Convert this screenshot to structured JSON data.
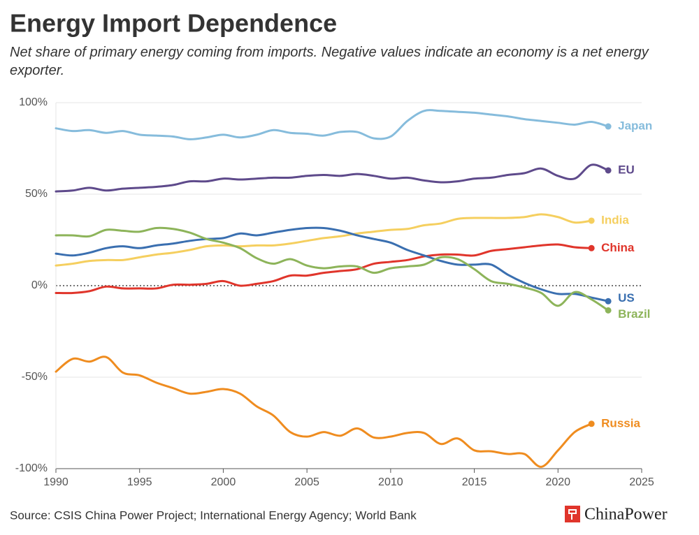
{
  "chart_data": {
    "type": "line",
    "title": "Energy Import Dependence",
    "subtitle": "Net share of primary energy coming from imports. Negative values indicate an economy is a net energy exporter.",
    "source": "Source: CSIS China Power Project; International Energy Agency; World Bank",
    "logo": "ChinaPower",
    "x": [
      1990,
      1991,
      1992,
      1993,
      1994,
      1995,
      1996,
      1997,
      1998,
      1999,
      2000,
      2001,
      2002,
      2003,
      2004,
      2005,
      2006,
      2007,
      2008,
      2009,
      2010,
      2011,
      2012,
      2013,
      2014,
      2015,
      2016,
      2017,
      2018,
      2019,
      2020,
      2021,
      2022,
      2023
    ],
    "xlim": [
      1990,
      2025
    ],
    "xticks": [
      1990,
      1995,
      2000,
      2005,
      2010,
      2015,
      2020,
      2025
    ],
    "ylim": [
      -100,
      100
    ],
    "yticks": [
      {
        "value": 100,
        "label": "100%"
      },
      {
        "value": 50,
        "label": "50%"
      },
      {
        "value": 0,
        "label": "0%"
      },
      {
        "value": -50,
        "label": "-50%"
      },
      {
        "value": -100,
        "label": "-100%"
      }
    ],
    "grid": true,
    "series": [
      {
        "name": "Japan",
        "color": "#86bcdc",
        "values": [
          86,
          84.5,
          85,
          83.5,
          84.5,
          82.5,
          82,
          81.5,
          80,
          81,
          82.5,
          81,
          82.5,
          85,
          83.5,
          83,
          82,
          84,
          84,
          80.5,
          81.5,
          90,
          95.5,
          95.5,
          95,
          94.5,
          93.5,
          92.5,
          91,
          90,
          89,
          88,
          89.5,
          87
        ]
      },
      {
        "name": "EU",
        "color": "#5e4a8b",
        "values": [
          51.5,
          52,
          53.5,
          52,
          53,
          53.5,
          54,
          55,
          57,
          57,
          58.5,
          58,
          58.5,
          59,
          59,
          60,
          60.5,
          60,
          61,
          60,
          58.5,
          59,
          57.5,
          56.5,
          57,
          58.5,
          59,
          60.5,
          61.5,
          64,
          60,
          58.5,
          66,
          63
        ]
      },
      {
        "name": "India",
        "color": "#f5cf5f",
        "values": [
          11,
          12,
          13.5,
          14,
          14,
          15.5,
          17,
          18,
          19.5,
          21.5,
          22,
          21.5,
          22,
          22,
          23,
          24.5,
          26,
          27,
          28.5,
          29.5,
          30.5,
          31,
          33,
          34,
          36.5,
          37,
          37,
          37,
          37.5,
          39,
          37.5,
          34.5,
          35.5,
          null
        ]
      },
      {
        "name": "China",
        "color": "#e0352b",
        "values": [
          -4,
          -4,
          -3,
          -0.5,
          -1.5,
          -1.5,
          -1.5,
          0.5,
          0.5,
          1,
          2.5,
          0,
          1,
          2.5,
          5.5,
          5.5,
          7,
          8,
          9,
          12,
          13,
          14,
          16,
          17,
          17,
          16.5,
          19,
          20,
          21,
          22,
          22.5,
          21,
          20.5,
          null
        ]
      },
      {
        "name": "US",
        "color": "#3a6fb0",
        "values": [
          17.5,
          16.5,
          18,
          20.5,
          21.5,
          20.5,
          22,
          23,
          24.5,
          25.5,
          26,
          28.5,
          27.5,
          29,
          30.5,
          31.5,
          31.5,
          30,
          27.5,
          25.5,
          23.5,
          19.5,
          16.5,
          13.5,
          11.5,
          11.5,
          11.5,
          6,
          1.5,
          -2,
          -4.5,
          -4.5,
          -6.5,
          -8.5
        ]
      },
      {
        "name": "Brazil",
        "color": "#8db45a",
        "values": [
          27.5,
          27.5,
          27,
          30.5,
          30,
          29.5,
          31.5,
          31,
          29,
          25.5,
          23.5,
          20.5,
          15,
          12,
          14.5,
          11,
          9.5,
          10.5,
          10.5,
          7,
          9.5,
          10.5,
          11.5,
          15.5,
          14.5,
          9,
          2.5,
          1,
          -1,
          -4,
          -11,
          -3.5,
          -7.5,
          -13.5
        ]
      },
      {
        "name": "Russia",
        "color": "#ef8c1f",
        "values": [
          -47,
          -40,
          -41.5,
          -39,
          -47.5,
          -49,
          -53,
          -56,
          -59,
          -58,
          -56.5,
          -59,
          -66,
          -71,
          -80,
          -82.5,
          -80,
          -82,
          -78,
          -83,
          -82.5,
          -80.5,
          -80.5,
          -86.5,
          -83.5,
          -90,
          -90.5,
          -92,
          -92,
          -99,
          -90,
          -80,
          -75.5,
          null
        ]
      }
    ]
  }
}
